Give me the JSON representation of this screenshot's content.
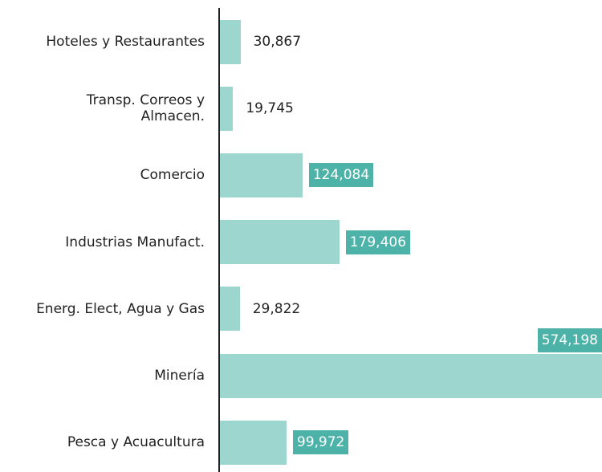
{
  "chart_data": {
    "type": "bar",
    "orientation": "horizontal",
    "categories": [
      "Hoteles y Restaurantes",
      "Transp. Correos y Almacen.",
      "Comercio",
      "Industrias Manufact.",
      "Energ. Elect, Agua y Gas",
      "Minería",
      "Pesca y Acuacultura"
    ],
    "values": [
      30867,
      19745,
      124084,
      179406,
      29822,
      574198,
      99972
    ],
    "value_labels": [
      "30,867",
      "19,745",
      "124,084",
      "179,406",
      "29,822",
      "574,198",
      "99,972"
    ],
    "color": "#9dd5cf",
    "label_box_color": "#4db3a8"
  }
}
